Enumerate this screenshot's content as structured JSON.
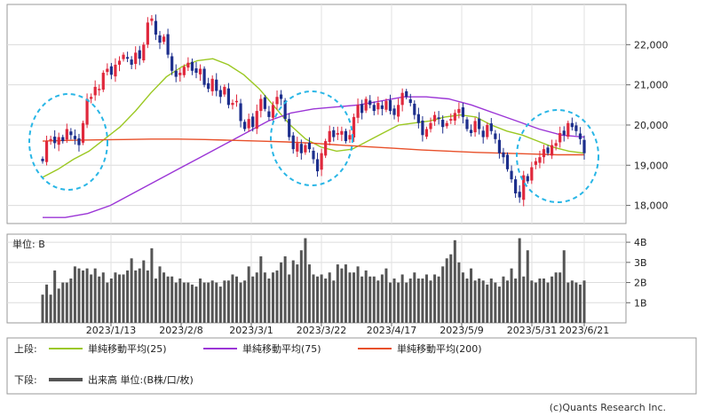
{
  "chart_data": {
    "type": "candlestick",
    "upper": {
      "y_ticks": [
        "18,000",
        "19,000",
        "20,000",
        "21,000",
        "22,000"
      ],
      "y_tick_values": [
        18000,
        19000,
        20000,
        21000,
        22000
      ],
      "ylim": [
        17550,
        23000
      ],
      "candle_colors": {
        "up": "#e0283c",
        "down": "#1c2e8c"
      },
      "start_close": 19100,
      "closes": [
        19100,
        19600,
        19650,
        19550,
        19700,
        19600,
        19900,
        19750,
        19650,
        19500,
        20050,
        20650,
        20700,
        20950,
        20900,
        21300,
        21400,
        21250,
        21500,
        21600,
        21750,
        21650,
        21500,
        21800,
        21650,
        22000,
        22550,
        22650,
        22250,
        22050,
        22200,
        21750,
        21350,
        21200,
        21300,
        21450,
        21550,
        21350,
        21300,
        21400,
        21000,
        20900,
        21150,
        20850,
        20700,
        20950,
        20500,
        20550,
        20600,
        20100,
        19900,
        20150,
        19950,
        20350,
        20650,
        20400,
        20200,
        20500,
        20700,
        20650,
        20150,
        19700,
        19400,
        19550,
        19300,
        19500,
        19400,
        19150,
        18850,
        19300,
        19600,
        19850,
        19700,
        19800,
        19850,
        19600,
        19750,
        20200,
        20500,
        20300,
        20650,
        20500,
        20350,
        20550,
        20400,
        20600,
        20350,
        20250,
        20500,
        20800,
        20700,
        20550,
        20250,
        20050,
        19750,
        19900,
        20050,
        20250,
        20150,
        19950,
        20050,
        20150,
        20300,
        20400,
        20200,
        19900,
        19800,
        20100,
        19900,
        19700,
        20000,
        19850,
        19650,
        19300,
        19200,
        18900,
        18650,
        18300,
        18200,
        18750,
        18600,
        18950,
        19100,
        19200,
        19400,
        19300,
        19500,
        19550,
        19800,
        19750,
        20050,
        19950,
        19850,
        19650,
        19300
      ],
      "ma": [
        {
          "name": "単純移動平均(25)",
          "color": "#9bc822",
          "values": [
            18700,
            18900,
            19150,
            19350,
            19650,
            19950,
            20350,
            20800,
            21200,
            21450,
            21600,
            21650,
            21500,
            21250,
            20900,
            20450,
            20000,
            19650,
            19450,
            19350,
            19400,
            19600,
            19800,
            20000,
            20050,
            20100,
            20200,
            20250,
            20200,
            20000,
            19850,
            19750,
            19600,
            19450,
            19350,
            19300
          ]
        },
        {
          "name": "単純移動平均(75)",
          "color": "#9b35d6",
          "values": [
            17700,
            17700,
            17800,
            18000,
            18300,
            18600,
            18900,
            19200,
            19500,
            19800,
            20100,
            20300,
            20400,
            20450,
            20500,
            20600,
            20700,
            20700,
            20650,
            20500,
            20300,
            20100,
            19900,
            19750,
            19700
          ]
        },
        {
          "name": "単純移動平均(200)",
          "color": "#e8502a",
          "values": [
            19600,
            19620,
            19630,
            19640,
            19650,
            19650,
            19640,
            19620,
            19600,
            19580,
            19550,
            19500,
            19460,
            19420,
            19380,
            19350,
            19320,
            19300,
            19280,
            19260,
            19260
          ]
        }
      ]
    },
    "lower": {
      "unit_label": "単位: B",
      "y_ticks": [
        "1B",
        "2B",
        "3B",
        "4B"
      ],
      "y_tick_values": [
        1,
        2,
        3,
        4
      ],
      "ylim": [
        0,
        4.4
      ],
      "bar_color": "#555555",
      "volume": [
        1.4,
        1.9,
        1.4,
        2.6,
        1.7,
        2.0,
        2.0,
        2.2,
        2.8,
        2.7,
        2.6,
        2.7,
        2.4,
        2.7,
        2.3,
        2.5,
        2.0,
        2.2,
        2.5,
        2.4,
        2.4,
        2.6,
        3.2,
        2.6,
        2.7,
        3.1,
        2.6,
        3.7,
        2.2,
        2.8,
        2.5,
        2.3,
        2.3,
        2.0,
        2.2,
        2.0,
        2.0,
        1.9,
        1.8,
        2.2,
        2.0,
        2.0,
        2.1,
        2.0,
        1.8,
        2.1,
        2.1,
        2.4,
        2.3,
        2.0,
        2.1,
        2.8,
        2.3,
        2.5,
        3.3,
        2.5,
        2.2,
        2.5,
        2.6,
        3.0,
        3.3,
        2.4,
        3.1,
        2.9,
        3.6,
        4.2,
        2.9,
        2.4,
        2.3,
        2.4,
        2.2,
        2.5,
        2.1,
        2.9,
        2.7,
        2.9,
        2.5,
        2.5,
        2.8,
        2.3,
        2.6,
        2.3,
        2.3,
        2.1,
        2.4,
        2.7,
        2.0,
        2.2,
        2.0,
        2.4,
        2.0,
        2.2,
        2.5,
        2.2,
        2.2,
        2.4,
        2.1,
        2.4,
        2.3,
        2.8,
        3.2,
        3.4,
        4.1,
        3.0,
        2.5,
        2.2,
        2.7,
        2.1,
        2.2,
        2.1,
        1.9,
        2.2,
        2.0,
        1.8,
        2.3,
        2.1,
        2.7,
        2.2,
        4.2,
        2.3,
        3.6,
        2.1,
        2.0,
        2.2,
        2.2,
        2.0,
        2.3,
        2.5,
        2.5,
        3.6,
        2.0,
        2.1,
        2.0,
        1.9,
        2.1
      ]
    },
    "x_labels": [
      "2023/1/13",
      "2023/2/8",
      "2023/3/1",
      "2023/3/22",
      "2023/4/17",
      "2023/5/9",
      "2023/5/31",
      "2023/6/21"
    ],
    "highlight_circles": 3
  },
  "legend": {
    "upper_label": "上段:",
    "lower_label": "下段:",
    "ma25_label": "単純移動平均(25)",
    "ma75_label": "単純移動平均(75)",
    "ma200_label": "単純移動平均(200)",
    "volume_label": "出来高 単位:(B株/口/枚)"
  },
  "credit": "(c)Quants Research Inc."
}
